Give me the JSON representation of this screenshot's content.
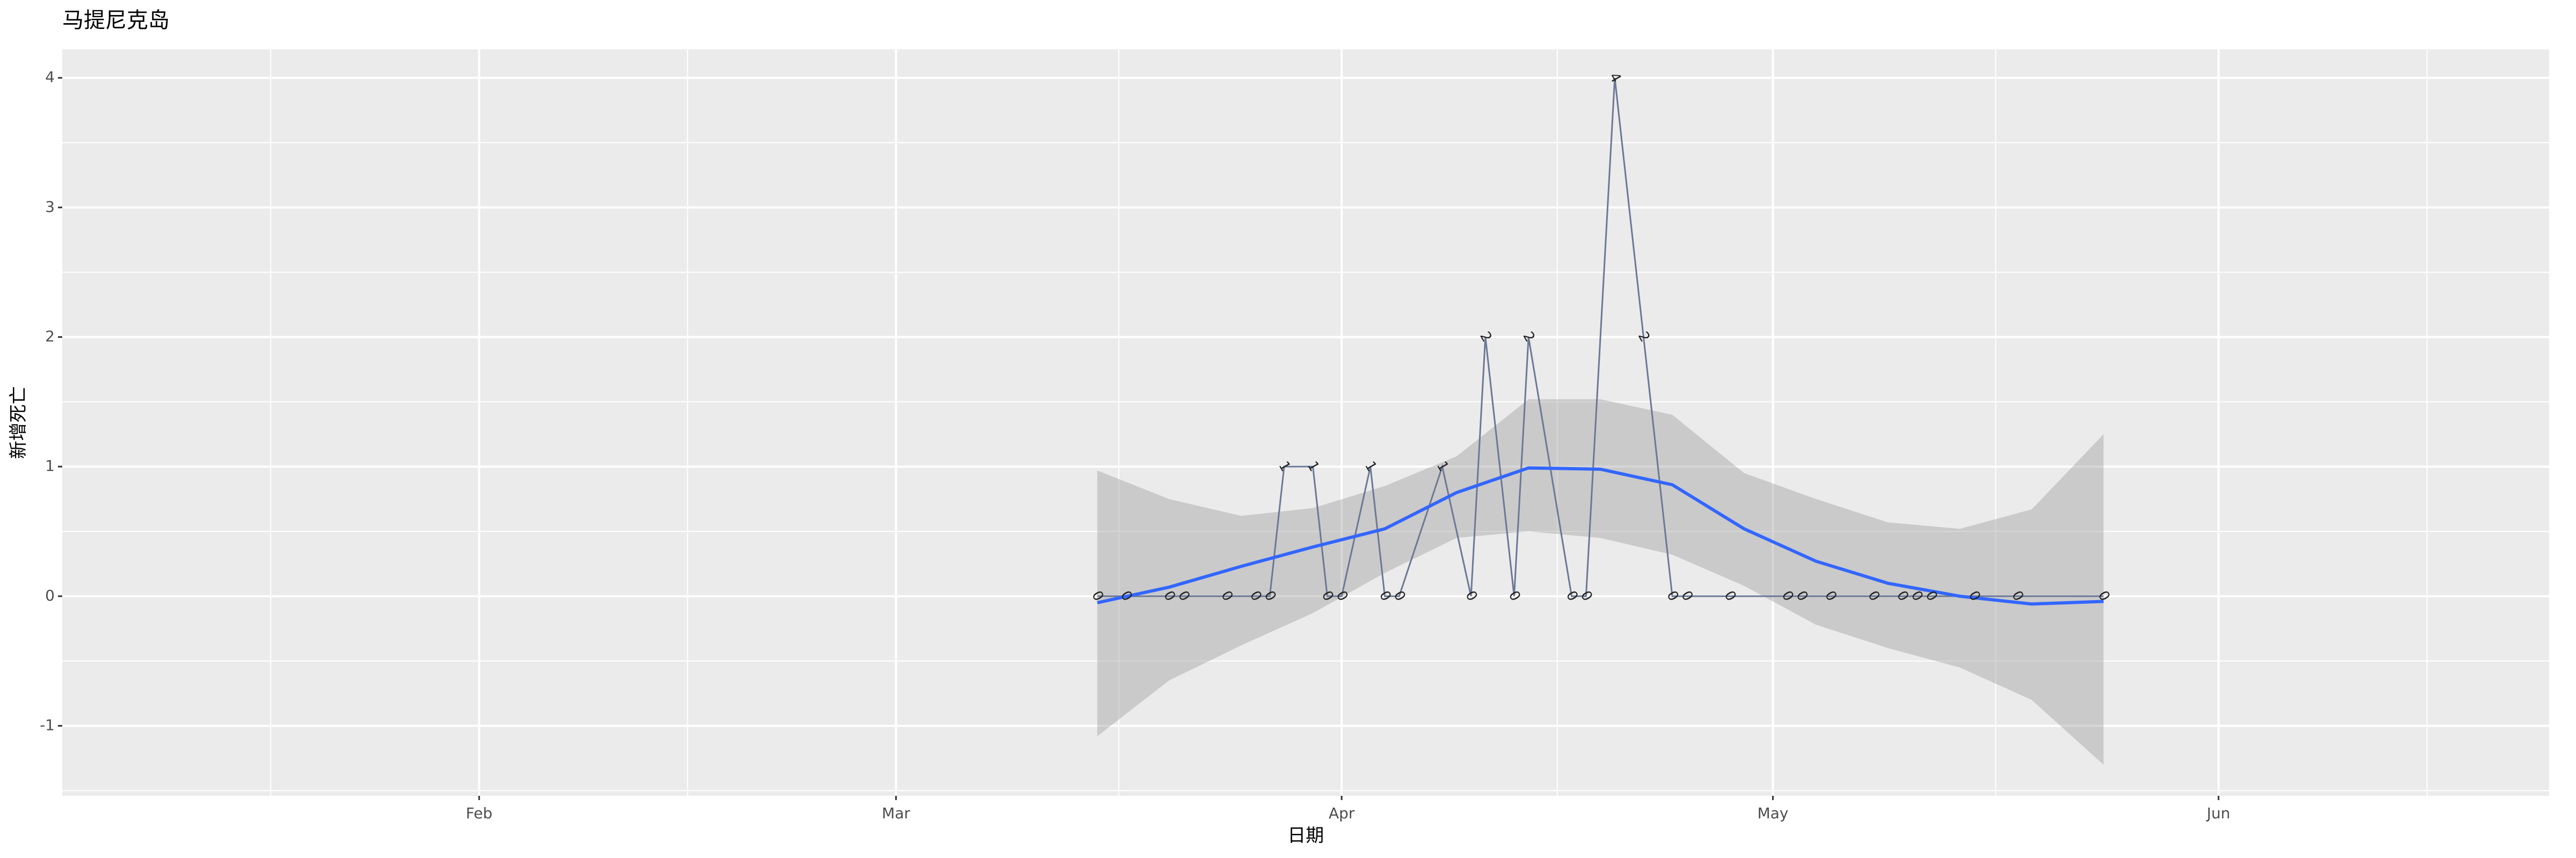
{
  "chart_data": {
    "type": "line",
    "title": "马提尼克岛",
    "x_label": "日期",
    "y_label": "新增死亡",
    "x": [
      "03-15",
      "03-17",
      "03-20",
      "03-21",
      "03-24",
      "03-26",
      "03-27",
      "03-28",
      "03-30",
      "03-31",
      "04-01",
      "04-03",
      "04-04",
      "04-05",
      "04-08",
      "04-10",
      "04-11",
      "04-13",
      "04-14",
      "04-17",
      "04-18",
      "04-20",
      "04-22",
      "04-24",
      "04-25",
      "04-28",
      "05-02",
      "05-03",
      "05-05",
      "05-08",
      "05-10",
      "05-11",
      "05-12",
      "05-15",
      "05-18",
      "05-24"
    ],
    "values": [
      0,
      0,
      0,
      0,
      0,
      0,
      0,
      1,
      1,
      0,
      0,
      1,
      0,
      0,
      1,
      0,
      2,
      0,
      2,
      0,
      0,
      4,
      2,
      0,
      0,
      0,
      0,
      0,
      0,
      0,
      0,
      0,
      0,
      0,
      0,
      0
    ],
    "color": "#6b7896",
    "smooth": {
      "x": [
        "03-15",
        "03-20",
        "03-25",
        "03-30",
        "04-04",
        "04-09",
        "04-14",
        "04-19",
        "04-24",
        "04-29",
        "05-04",
        "05-09",
        "05-14",
        "05-19",
        "05-24"
      ],
      "values": [
        -0.05,
        0.07,
        0.23,
        0.38,
        0.52,
        0.8,
        0.99,
        0.98,
        0.86,
        0.52,
        0.27,
        0.1,
        0.0,
        -0.06,
        -0.04
      ],
      "upper": [
        0.97,
        0.75,
        0.62,
        0.68,
        0.85,
        1.08,
        1.52,
        1.52,
        1.4,
        0.95,
        0.75,
        0.57,
        0.52,
        0.67,
        1.25
      ],
      "lower": [
        -1.08,
        -0.65,
        -0.38,
        -0.13,
        0.18,
        0.45,
        0.5,
        0.45,
        0.32,
        0.08,
        -0.22,
        -0.4,
        -0.55,
        -0.8,
        -1.3
      ],
      "color": "#3366FF",
      "band_color": "#999999"
    },
    "xlim": [
      "01-03",
      "06-24"
    ],
    "xticks": [
      {
        "value": "02-01",
        "label": "Feb"
      },
      {
        "value": "03-01",
        "label": "Mar"
      },
      {
        "value": "04-01",
        "label": "Apr"
      },
      {
        "value": "05-01",
        "label": "May"
      },
      {
        "value": "06-01",
        "label": "Jun"
      }
    ],
    "ylim": [
      -1.54,
      4.22
    ],
    "yticks": [
      -1,
      0,
      1,
      2,
      3,
      4
    ],
    "grid": true
  }
}
